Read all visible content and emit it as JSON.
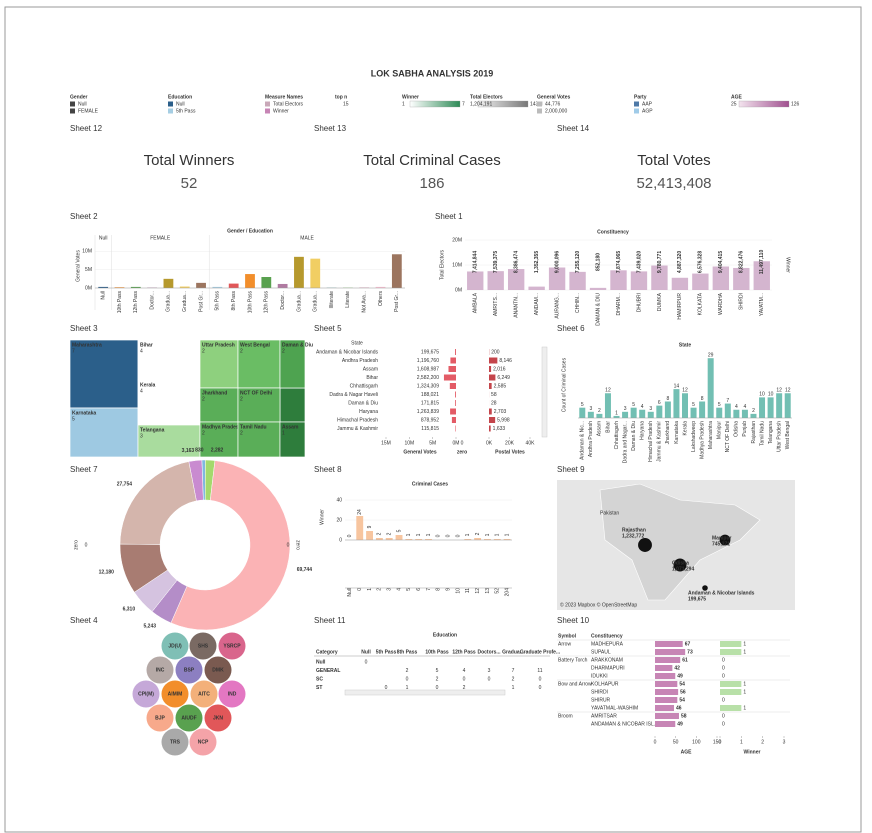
{
  "header": {
    "title": "LOK SABHA ANALYSIS 2019",
    "legends": [
      {
        "title": "Gender",
        "items": [
          "Null",
          "FEMALE"
        ],
        "colors": [
          "#444444",
          "#444444"
        ]
      },
      {
        "title": "Education",
        "items": [
          "Null",
          "5th Pass"
        ],
        "colors": [
          "#2c5f8a",
          "#a6cee3"
        ]
      },
      {
        "title": "Measure Names",
        "items": [
          "Total Electors",
          "Winner"
        ],
        "colors": [
          "#c9a8b8",
          "#c785b5"
        ]
      },
      {
        "title": "top n",
        "items": [
          "15"
        ]
      },
      {
        "title": "Winner",
        "items": [
          "1",
          "7"
        ],
        "colors": [
          "#ffffff",
          "#2e8b57"
        ]
      },
      {
        "title": "Total Electors",
        "items": [
          "1,204,191",
          "143M"
        ],
        "colors": [
          "#f2f2f2",
          "#777777"
        ]
      },
      {
        "title": "General Votes",
        "items": [
          "44,776",
          "2,000,000"
        ],
        "colors": [
          "#bbbbbb",
          "#bbbbbb"
        ]
      },
      {
        "title": "Party",
        "items": [
          "AAP",
          "AGP"
        ],
        "colors": [
          "#4e79a7",
          "#a0cbe8"
        ]
      },
      {
        "title": "AGE",
        "items": [
          "25",
          "126"
        ],
        "colors": [
          "#f3e3ee",
          "#a0508f"
        ]
      }
    ]
  },
  "kpis": [
    {
      "sheet": "Sheet 12",
      "label": "Total Winners",
      "value": "52"
    },
    {
      "sheet": "Sheet 13",
      "label": "Total Criminal Cases",
      "value": "186"
    },
    {
      "sheet": "Sheet 14",
      "label": "Total Votes",
      "value": "52,413,408"
    }
  ],
  "sheet2": {
    "label": "Sheet 2",
    "title": "Gender / Education",
    "y_title": "General Votes",
    "ylim": [
      0,
      12000000
    ],
    "yticks": [
      {
        "value": 0,
        "label": "0M"
      },
      {
        "value": 5000000,
        "label": "5M"
      },
      {
        "value": 10000000,
        "label": "10M"
      }
    ],
    "groups": [
      {
        "name": "Null",
        "categories": [
          "Null"
        ],
        "values": [
          300000
        ],
        "colors": [
          "#2c5f8a"
        ]
      },
      {
        "name": "FEMALE",
        "categories": [
          "10th Pass",
          "12th Pass",
          "Doctor...",
          "Gradua...",
          "Gradua...",
          "Post Gr..."
        ],
        "values": [
          200000,
          300000,
          100000,
          2500000,
          400000,
          1400000
        ],
        "colors": [
          "#f28e2b",
          "#59a14f",
          "#b07aa1",
          "#b6992d",
          "#f1ce63",
          "#9c755f"
        ]
      },
      {
        "name": "MALE",
        "categories": [
          "5th Pass",
          "8th Pass",
          "10th Pass",
          "12th Pass",
          "Doctor...",
          "Gradua...",
          "Gradua...",
          "Illiterate",
          "Literate",
          "Not Ava...",
          "Others",
          "Post Gr..."
        ],
        "values": [
          300000,
          1200000,
          3800000,
          3000000,
          1100000,
          8500000,
          8000000,
          100000,
          100000,
          100000,
          300000,
          9200000
        ],
        "colors": [
          "#a6cee3",
          "#e15759",
          "#f28e2b",
          "#59a14f",
          "#b07aa1",
          "#b6992d",
          "#f1ce63",
          "#86bcb6",
          "#8cd17d",
          "#d37295",
          "#fabfd2",
          "#9c755f"
        ]
      }
    ]
  },
  "sheet1": {
    "label": "Sheet 1",
    "title": "Constituency",
    "y_title": "Total Electors",
    "y2_title": "Winner",
    "color": "#c9a3c3",
    "ylim": [
      0,
      20000000
    ],
    "yticks": [
      {
        "value": 0,
        "label": "0M"
      },
      {
        "value": 10000000,
        "label": "10M"
      },
      {
        "value": 20000000,
        "label": "20M"
      }
    ],
    "categories": [
      "AMBALA",
      "AMRITS...",
      "ANANTN...",
      "ANDAM...",
      "AURANG...",
      "CHHIN...",
      "DAMAN & DIU",
      "DHARM...",
      "DHUBRI",
      "DUMKA",
      "HAMIRPUR",
      "KOLKATA",
      "WARDHA",
      "SHIRDI",
      "YAVATM..."
    ],
    "values": [
      7414844,
      7539375,
      8386474,
      1352355,
      9000096,
      7255120,
      852180,
      7874065,
      7439020,
      9780771,
      4887320,
      6576328,
      9404415,
      8822476,
      11497110
    ],
    "value_labels": [
      "7,414,844",
      "7,539,375",
      "8,386,474",
      "1,352,355",
      "9,000,096",
      "7,255,120",
      "852,180",
      "7,874,065",
      "7,439,020",
      "9,780,771",
      "4,887,320",
      "6,576,328",
      "9,404,415",
      "8,822,476",
      "11,497,110"
    ]
  },
  "sheet3": {
    "label": "Sheet 3",
    "states": [
      "Maharashtra",
      "Karnataka",
      "Bihar",
      "Kerala",
      "Telangana",
      "Uttar Pradesh",
      "West Bengal",
      "Daman & Diu",
      "Jharkhand",
      "NCT OF Delhi",
      "Madhya Pradesh",
      "Tamil Nadu",
      "Assam"
    ],
    "values": [
      7,
      5,
      4,
      4,
      3,
      2,
      2,
      2,
      2,
      2,
      2,
      2,
      1
    ],
    "colors": [
      "#2b5f8a",
      "#9ec9e2",
      "#ffffff",
      "#ffffff",
      "#a9dc9e",
      "#8ed07e",
      "#6abd64",
      "#4ea350",
      "#5aae58",
      "#5aae58",
      "#5aae58",
      "#5aae58",
      "#2e7d3c"
    ]
  },
  "sheet5": {
    "label": "Sheet 5",
    "state_header": "State",
    "general_title": "General Votes",
    "zero_title": "zero",
    "postal_title": "Postal Votes",
    "states": [
      "Andaman & Nicobar Islands",
      "Andhra Pradesh",
      "Assam",
      "Bihar",
      "Chhattisgarh",
      "Dadra & Nagar Haveli",
      "Daman & Diu",
      "Haryana",
      "Himachal Pradesh",
      "Jammu & Kashmir"
    ],
    "general_votes": [
      199675,
      1196760,
      1608987,
      2582200,
      1324309,
      188021,
      171815,
      1263839,
      878952,
      115815
    ],
    "general_labels": [
      "199,675",
      "1,196,760",
      "1,608,987",
      "2,582,200",
      "1,324,309",
      "188,021",
      "171,815",
      "1,263,839",
      "878,952",
      "115,815"
    ],
    "postal_votes": [
      200,
      8146,
      2016,
      6249,
      2585,
      58,
      28,
      2703,
      5998,
      1633
    ],
    "postal_labels": [
      "200",
      "8,146",
      "2,016",
      "6,249",
      "2,585",
      "58",
      "28",
      "2,703",
      "5,998",
      "1,633"
    ],
    "general_xlim": [
      15000000,
      0
    ],
    "general_ticks": [
      {
        "value": 15000000,
        "label": "15M"
      },
      {
        "value": 10000000,
        "label": "10M"
      },
      {
        "value": 5000000,
        "label": "5M"
      },
      {
        "value": 0,
        "label": "0M"
      }
    ],
    "zero_ticks": [
      0
    ],
    "postal_xlim": [
      0,
      40000
    ],
    "postal_ticks": [
      {
        "value": 0,
        "label": "0K"
      },
      {
        "value": 20000,
        "label": "20K"
      },
      {
        "value": 40000,
        "label": "40K"
      }
    ],
    "general_color": "#e35b66",
    "postal_color": "#c4454b"
  },
  "sheet6": {
    "label": "Sheet 6",
    "title": "State",
    "y_title": "Count of Criminal Cases",
    "color": "#72bfb3",
    "ylim": [
      0,
      32
    ],
    "categories": [
      "Andaman & Nic...",
      "Andhra Pradesh",
      "Assam",
      "Bihar",
      "Chhattisgarh",
      "Dadra and Nagar...",
      "Daman & Diu",
      "Haryana",
      "Himachal Pradesh",
      "Jammu & Kashmir",
      "Jharkhand",
      "Karnataka",
      "Kerala",
      "Lakshadweep",
      "Madhya Pradesh",
      "Maharashtra",
      "Manipur",
      "NCT OF Delhi",
      "Odisha",
      "Punjab",
      "Rajasthan",
      "Tamil Nadu",
      "Telangana",
      "Uttar Pradesh",
      "West Bengal"
    ],
    "values": [
      5,
      3,
      2,
      12,
      1,
      3,
      5,
      4,
      3,
      6,
      8,
      14,
      12,
      5,
      8,
      29,
      5,
      7,
      4,
      4,
      2,
      10,
      10,
      12,
      12
    ]
  },
  "sheet7": {
    "label": "Sheet 7",
    "axis_title": "zero",
    "ticks": [
      0
    ],
    "values": [
      3163,
      830,
      2282,
      69744,
      5243,
      6310,
      12180,
      27754
    ],
    "value_labels": [
      "3,163",
      "830",
      "2,282",
      "69,744",
      "5,243",
      "6,310",
      "12,180",
      "27,754"
    ],
    "colors": [
      "#c98bd0",
      "#7fb8e0",
      "#a4d96c",
      "#fbb3b5",
      "#b48dc8",
      "#d5c3e0",
      "#a87c72",
      "#d4b5ac"
    ]
  },
  "sheet8": {
    "label": "Sheet 8",
    "title": "Criminal Cases",
    "y_title": "Winner",
    "color": "#f7c59f",
    "ylim": [
      0,
      45
    ],
    "yticks": [
      0,
      20,
      40
    ],
    "categories": [
      "Null",
      "0",
      "1",
      "2",
      "3",
      "4",
      "5",
      "6",
      "7",
      "8",
      "9",
      "10",
      "11",
      "12",
      "13",
      "52",
      "204"
    ],
    "values": [
      0,
      24,
      9,
      2,
      2,
      5,
      1,
      1,
      1,
      0,
      0,
      0,
      1,
      2,
      1,
      1,
      1
    ]
  },
  "sheet9": {
    "label": "Sheet 9",
    "country": "Pakistan",
    "credit": "© 2023 Mapbox © OpenStreetMap",
    "points": [
      {
        "name": "Rajasthan",
        "label": "1,232,772",
        "value": 1232772
      },
      {
        "name": "Manipur",
        "label": "745,371",
        "value": 745371
      },
      {
        "name": "Odisha",
        "label": "1,071,294",
        "value": 1071294
      },
      {
        "name": "Andaman & Nicobar Islands",
        "label": "199,675",
        "value": 199675
      }
    ]
  },
  "sheet4": {
    "label": "Sheet 4",
    "parties": [
      "JD(U)",
      "SHS",
      "YSRCP",
      "INC",
      "BSP",
      "DMK",
      "CPI(M)",
      "AIMIM",
      "AITC",
      "IND",
      "BJP",
      "AIUDF",
      "JKN",
      "TRS",
      "NCP"
    ],
    "colors": [
      "#7fbfb5",
      "#7a6a63",
      "#d9658c",
      "#b5a9a6",
      "#8c7fc1",
      "#7a5a50",
      "#c5a8d8",
      "#f28e2b",
      "#f3b07a",
      "#e377c2",
      "#f7a98b",
      "#59a14f",
      "#e15759",
      "#a9a9a9",
      "#f4a3a8"
    ]
  },
  "sheet11": {
    "label": "Sheet 11",
    "title": "Education",
    "columns": [
      "Category",
      "Null",
      "5th Pass",
      "8th Pass",
      "10th Pass",
      "12th Pass",
      "Doctors...",
      "Gradua...",
      "Graduate Profe..."
    ],
    "rows": [
      {
        "category": "Null",
        "cells": [
          0,
          null,
          null,
          null,
          null,
          null,
          null,
          null
        ]
      },
      {
        "category": "GENERAL",
        "cells": [
          null,
          null,
          2,
          5,
          4,
          3,
          7,
          11
        ]
      },
      {
        "category": "SC",
        "cells": [
          null,
          null,
          0,
          2,
          0,
          0,
          2,
          0
        ]
      },
      {
        "category": "ST",
        "cells": [
          null,
          0,
          1,
          0,
          2,
          null,
          1,
          0
        ]
      }
    ]
  },
  "sheet10": {
    "label": "Sheet 10",
    "symbol_header": "Symbol",
    "constituency_header": "Constituency",
    "age_title": "AGE",
    "winner_title": "Winner",
    "age_color": "#c785b5",
    "winner_color": "#b8e0a8",
    "age_xlim": [
      0,
      150
    ],
    "age_ticks": [
      0,
      50,
      100,
      150
    ],
    "winner_xlim": [
      0,
      3
    ],
    "winner_ticks": [
      0,
      1,
      2,
      3
    ],
    "groups": [
      {
        "symbol": "Arrow",
        "rows": [
          {
            "constituency": "MADHEPURA",
            "age": 67,
            "winner": 1
          },
          {
            "constituency": "SUPAUL",
            "age": 73,
            "winner": 1
          }
        ]
      },
      {
        "symbol": "Battery Torch",
        "rows": [
          {
            "constituency": "ARAKKONAM",
            "age": 61,
            "winner": 0
          },
          {
            "constituency": "DHARMAPURI",
            "age": 42,
            "winner": 0
          },
          {
            "constituency": "IDUKKI",
            "age": 49,
            "winner": 0
          }
        ]
      },
      {
        "symbol": "Bow and Arrow",
        "rows": [
          {
            "constituency": "KOLHAPUR",
            "age": 54,
            "winner": 1
          },
          {
            "constituency": "SHIRDI",
            "age": 56,
            "winner": 1
          },
          {
            "constituency": "SHIRUR",
            "age": 54,
            "winner": 0
          },
          {
            "constituency": "YAVATMAL-WASHIM",
            "age": 46,
            "winner": 1
          }
        ]
      },
      {
        "symbol": "Broom",
        "rows": [
          {
            "constituency": "AMRITSAR",
            "age": 58,
            "winner": 0
          },
          {
            "constituency": "ANDAMAN & NICOBAR ISL...",
            "age": 49,
            "winner": 0
          }
        ]
      }
    ]
  }
}
